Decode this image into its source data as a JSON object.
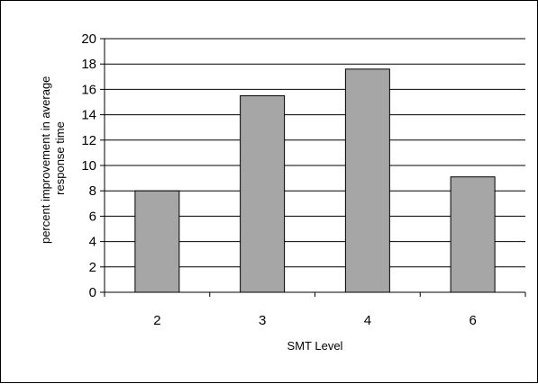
{
  "chart_data": {
    "type": "bar",
    "title": "",
    "categories": [
      "2",
      "3",
      "4",
      "6"
    ],
    "values": [
      8,
      15.5,
      17.6,
      9.1
    ],
    "xlabel": "SMT Level",
    "ylabel_lines": [
      "percent improvement in average",
      "response time"
    ],
    "ylim": [
      0,
      20
    ],
    "y_ticks": [
      "0",
      "2",
      "4",
      "6",
      "8",
      "10",
      "12",
      "14",
      "16",
      "18",
      "20"
    ],
    "grid": "horizontal major gridlines",
    "legend": "none",
    "colors": {
      "bar_fill": "#a6a6a6",
      "bar_stroke": "#000000",
      "grid": "#000000",
      "axis": "#000000",
      "plot_background": "#ffffff"
    }
  }
}
